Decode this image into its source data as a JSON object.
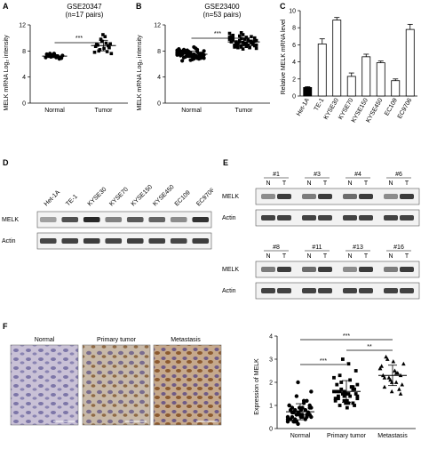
{
  "figure": {
    "panels": {
      "A": {
        "letter": "A",
        "title": "GSE20347",
        "subtitle": "(n=17 pairs)",
        "ylabel": "MELK mRNA Log₂ intensity",
        "sig": "***"
      },
      "B": {
        "letter": "B",
        "title": "GSE23400",
        "subtitle": "(n=53 pairs)",
        "ylabel": "MELK mRNA Log₂ intensity",
        "sig": "***"
      },
      "C": {
        "letter": "C",
        "ylabel": "Relative MELK mRNA level"
      },
      "D": {
        "letter": "D",
        "lanes": [
          "Het-1A",
          "TE-1",
          "KYSE30",
          "KYSE70",
          "KYSE150",
          "KYSE450",
          "EC109",
          "EC9706"
        ],
        "rows": [
          "MELK",
          "Actin"
        ]
      },
      "E": {
        "letter": "E",
        "top_pairs": [
          "#1",
          "#3",
          "#4",
          "#6"
        ],
        "bottom_pairs": [
          "#8",
          "#11",
          "#13",
          "#16"
        ],
        "N": "N",
        "T": "T",
        "rows": [
          "MELK",
          "Actin"
        ]
      },
      "F": {
        "letter": "F",
        "ihc_labels": [
          "Normal",
          "Primary tumor",
          "Metastasis"
        ],
        "ylabel": "Expression of MELK",
        "sig": [
          "***",
          "***",
          "**"
        ]
      }
    }
  },
  "chart_data": [
    {
      "type": "scatter",
      "title": "GSE20347",
      "subtitle": "(n=17 pairs)",
      "ylabel": "MELK mRNA Log₂ intensity",
      "categories": [
        "Normal",
        "Tumor"
      ],
      "ylim": [
        0,
        12
      ],
      "yticks": [
        0,
        4,
        8,
        12
      ],
      "series": [
        {
          "name": "Normal",
          "values": [
            7.0,
            7.2,
            7.4,
            7.3,
            7.1,
            6.9,
            7.5,
            7.6,
            7.2,
            7.0,
            6.8,
            7.3,
            7.4,
            7.1,
            7.6,
            7.2,
            7.0
          ]
        },
        {
          "name": "Tumor",
          "values": [
            8.0,
            9.5,
            10.2,
            8.8,
            7.6,
            9.0,
            8.2,
            10.5,
            9.2,
            8.5,
            7.8,
            8.9,
            9.8,
            8.4,
            7.9,
            9.1,
            8.7
          ]
        }
      ]
    },
    {
      "type": "scatter",
      "title": "GSE23400",
      "subtitle": "(n=53 pairs)",
      "ylabel": "MELK mRNA Log₂ intensity",
      "categories": [
        "Normal",
        "Tumor"
      ],
      "ylim": [
        0,
        12
      ],
      "yticks": [
        0,
        4,
        8,
        12
      ],
      "series": [
        {
          "name": "Normal",
          "values": [
            7.4,
            7.8,
            8.1,
            7.2,
            6.9,
            7.6,
            8.3,
            7.0,
            7.9,
            7.5,
            6.8,
            8.0,
            7.3,
            7.7,
            6.6,
            8.4,
            7.1,
            7.6,
            7.9,
            7.4,
            6.7,
            8.2,
            7.3,
            7.8,
            7.0,
            7.5,
            8.6,
            7.2,
            6.9,
            7.7,
            8.0,
            7.4,
            7.1,
            7.6,
            8.1,
            6.5,
            7.8,
            7.3,
            7.9,
            7.0,
            7.5,
            8.2,
            7.2,
            6.8,
            7.6,
            7.4,
            8.0,
            7.1,
            7.7,
            7.3,
            6.9,
            7.8,
            7.5
          ]
        },
        {
          "name": "Tumor",
          "values": [
            9.2,
            8.6,
            10.1,
            9.5,
            8.9,
            10.4,
            9.0,
            8.3,
            9.8,
            9.3,
            10.7,
            8.8,
            9.6,
            9.1,
            8.5,
            10.0,
            9.4,
            8.7,
            9.9,
            9.2,
            10.2,
            8.4,
            9.7,
            9.0,
            10.5,
            8.9,
            9.3,
            9.8,
            8.6,
            10.3,
            9.1,
            9.5,
            8.8,
            9.9,
            9.4,
            10.8,
            8.7,
            9.2,
            9.6,
            10.0,
            8.5,
            9.3,
            9.7,
            9.0,
            10.1,
            8.9,
            9.4,
            9.8,
            8.6,
            9.5,
            10.2,
            9.1,
            8.8
          ]
        }
      ]
    },
    {
      "type": "bar",
      "ylabel": "Relative MELK mRNA level",
      "categories": [
        "Het-1A",
        "TE-1",
        "KYSE30",
        "KYSE70",
        "KYSE150",
        "KYSE450",
        "EC109",
        "EC9706"
      ],
      "values": [
        1.0,
        6.1,
        8.9,
        2.3,
        4.6,
        3.9,
        1.8,
        7.8
      ],
      "errors": [
        0.1,
        0.6,
        0.3,
        0.4,
        0.3,
        0.2,
        0.2,
        0.6
      ],
      "ylim": [
        0,
        10
      ],
      "yticks": [
        0,
        2,
        4,
        6,
        8,
        10
      ],
      "colors": [
        "#000000",
        "#ffffff",
        "#ffffff",
        "#ffffff",
        "#ffffff",
        "#ffffff",
        "#ffffff",
        "#ffffff"
      ]
    },
    {
      "type": "scatter",
      "ylabel": "Expression of MELK",
      "categories": [
        "Normal",
        "Primary tumor",
        "Metastasis"
      ],
      "ylim": [
        0,
        4
      ],
      "yticks": [
        0,
        1,
        2,
        3,
        4
      ],
      "markers": [
        "circle",
        "square",
        "triangle"
      ],
      "series": [
        {
          "name": "Normal",
          "values": [
            0.3,
            0.5,
            0.6,
            0.8,
            0.4,
            0.9,
            1.0,
            0.7,
            0.2,
            0.6,
            1.2,
            0.5,
            0.8,
            0.3,
            0.9,
            1.1,
            0.6,
            0.4,
            0.7,
            1.4,
            0.5,
            0.8,
            0.6,
            1.0,
            0.3,
            0.7,
            0.9,
            0.5,
            1.6,
            0.4,
            0.8,
            0.6,
            1.2,
            0.7,
            0.5,
            0.9,
            0.3,
            0.6,
            0.8,
            1.0,
            0.4,
            0.7,
            2.0,
            0.5,
            0.6,
            0.9,
            0.8,
            0.4
          ]
        },
        {
          "name": "Primary tumor",
          "values": [
            1.0,
            1.2,
            1.5,
            1.8,
            1.3,
            1.6,
            2.0,
            1.1,
            1.4,
            1.7,
            2.2,
            1.3,
            1.5,
            0.9,
            1.8,
            2.5,
            1.2,
            1.6,
            1.4,
            2.8,
            1.1,
            1.9,
            1.3,
            1.7,
            1.5,
            2.1,
            1.0,
            1.6,
            1.4,
            3.0,
            1.2,
            1.8,
            1.5,
            1.3,
            2.3,
            1.6,
            1.1,
            1.7,
            1.4,
            1.9
          ]
        },
        {
          "name": "Metastasis",
          "values": [
            1.6,
            2.0,
            2.3,
            2.6,
            1.8,
            2.2,
            2.9,
            2.4,
            1.9,
            2.7,
            3.1,
            2.1,
            2.5,
            1.7,
            2.8,
            2.3,
            3.0,
            2.0,
            2.4,
            1.5,
            2.6,
            2.2
          ]
        }
      ]
    }
  ]
}
